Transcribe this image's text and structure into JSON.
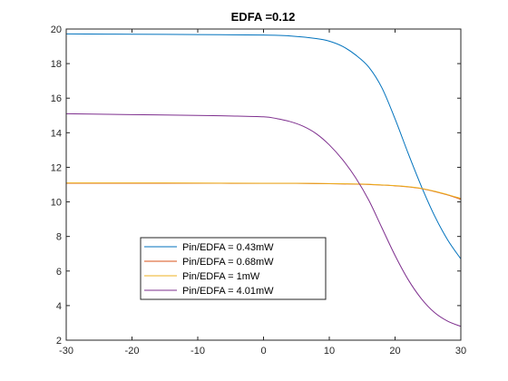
{
  "chart_data": {
    "type": "line",
    "title": "EDFA =0.12",
    "xlabel": "",
    "ylabel": "",
    "xlim": [
      -30,
      30
    ],
    "ylim": [
      2,
      20
    ],
    "xticks": [
      -30,
      -20,
      -10,
      0,
      10,
      20,
      30
    ],
    "yticks": [
      2,
      4,
      6,
      8,
      10,
      12,
      14,
      16,
      18,
      20
    ],
    "xtick_labels": [
      "-30",
      "-20",
      "-10",
      "0",
      "10",
      "20",
      "30"
    ],
    "ytick_labels": [
      "2",
      "4",
      "6",
      "8",
      "10",
      "12",
      "14",
      "16",
      "18",
      "20"
    ],
    "grid": false,
    "legend_position": "lower-left inside",
    "series": [
      {
        "name": "Pin/EDFA = 0.43mW",
        "color": "#0072BD",
        "x": [
          -30,
          -20,
          -10,
          0,
          4,
          8,
          10,
          12,
          14,
          16,
          18,
          20,
          22,
          24,
          26,
          28,
          30
        ],
        "y": [
          19.72,
          19.7,
          19.68,
          19.65,
          19.6,
          19.45,
          19.3,
          19.0,
          18.5,
          17.8,
          16.6,
          14.8,
          12.8,
          10.9,
          9.2,
          7.8,
          6.7
        ]
      },
      {
        "name": "Pin/EDFA = 0.68mW",
        "color": "#D95319",
        "x": [
          -30,
          -20,
          -10,
          0,
          5,
          10,
          15,
          18,
          20,
          22,
          24,
          26,
          28,
          30
        ],
        "y": [
          11.08,
          11.08,
          11.08,
          11.07,
          11.07,
          11.05,
          11.02,
          10.97,
          10.93,
          10.87,
          10.77,
          10.6,
          10.4,
          10.15
        ]
      },
      {
        "name": "Pin/EDFA = 1mW",
        "color": "#EDB120",
        "x": [
          -30,
          -20,
          -10,
          0,
          5,
          10,
          15,
          18,
          20,
          22,
          24,
          26,
          28,
          30
        ],
        "y": [
          11.1,
          11.1,
          11.09,
          11.08,
          11.08,
          11.06,
          11.03,
          10.98,
          10.94,
          10.88,
          10.78,
          10.62,
          10.42,
          10.2
        ]
      },
      {
        "name": "Pin/EDFA = 4.01mW",
        "color": "#7E2F8E",
        "x": [
          -30,
          -20,
          -10,
          -5,
          0,
          2,
          4,
          6,
          8,
          10,
          12,
          14,
          16,
          18,
          20,
          22,
          24,
          26,
          28,
          30
        ],
        "y": [
          15.1,
          15.05,
          15.0,
          14.97,
          14.92,
          14.82,
          14.65,
          14.38,
          13.95,
          13.3,
          12.45,
          11.4,
          10.1,
          8.5,
          6.9,
          5.5,
          4.4,
          3.6,
          3.1,
          2.8
        ]
      }
    ]
  }
}
